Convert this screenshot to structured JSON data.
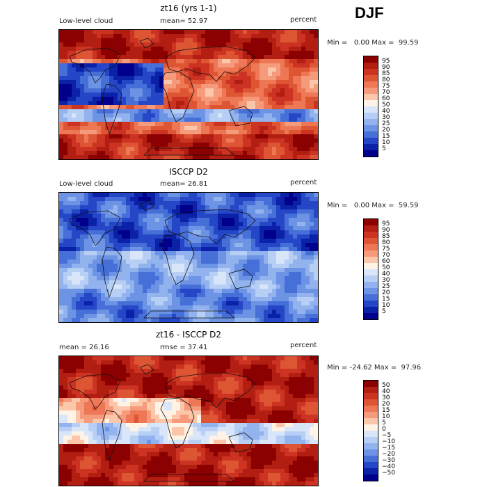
{
  "season": "DJF",
  "panels": [
    {
      "title": "zt16 (yrs 1-1)",
      "left_label": "Low-level cloud",
      "middle_label": "mean=  52.97",
      "right_label": "percent",
      "minmax": "Min =   0.00 Max =  99.59",
      "scheme": "model",
      "ticks": [
        "95",
        "90",
        "85",
        "80",
        "75",
        "70",
        "60",
        "50",
        "40",
        "30",
        "25",
        "20",
        "15",
        "10",
        "5"
      ],
      "colors": [
        "#8b0000",
        "#b21e12",
        "#cc3322",
        "#dd5533",
        "#ee7755",
        "#f59a7a",
        "#fbc6aa",
        "#fff3e6",
        "#d9e6fa",
        "#b8cff5",
        "#93b3ee",
        "#6c93e4",
        "#466fd8",
        "#2546c6",
        "#0b22a8",
        "#00008a"
      ]
    },
    {
      "title": "ISCCP D2",
      "left_label": "Low-level cloud",
      "middle_label": "mean=  26.81",
      "right_label": "percent",
      "minmax": "Min =   0.00 Max =  59.59",
      "scheme": "obs",
      "ticks": [
        "95",
        "90",
        "85",
        "80",
        "75",
        "70",
        "60",
        "50",
        "40",
        "30",
        "25",
        "20",
        "15",
        "10",
        "5"
      ],
      "colors": [
        "#8b0000",
        "#b21e12",
        "#cc3322",
        "#dd5533",
        "#ee7755",
        "#f59a7a",
        "#fbc6aa",
        "#fff3e6",
        "#d9e6fa",
        "#b8cff5",
        "#93b3ee",
        "#6c93e4",
        "#466fd8",
        "#2546c6",
        "#0b22a8",
        "#00008a"
      ]
    },
    {
      "title": "zt16 - ISCCP D2",
      "left_label": "mean =  26.16",
      "middle_label": "rmse =  37.41",
      "right_label": "percent",
      "minmax": "Min = -24.62 Max =  97.96",
      "scheme": "diff",
      "ticks": [
        "50",
        "40",
        "30",
        "20",
        "15",
        "10",
        "5",
        "0",
        "−5",
        "−10",
        "−15",
        "−20",
        "−30",
        "−40",
        "−50"
      ],
      "colors": [
        "#8b0000",
        "#b21e12",
        "#cc3322",
        "#dd5533",
        "#ee7755",
        "#f59a7a",
        "#fbc6aa",
        "#fff3e6",
        "#d9e6fa",
        "#b8cff5",
        "#93b3ee",
        "#6c93e4",
        "#466fd8",
        "#2546c6",
        "#0b22a8",
        "#00008a"
      ]
    }
  ]
}
